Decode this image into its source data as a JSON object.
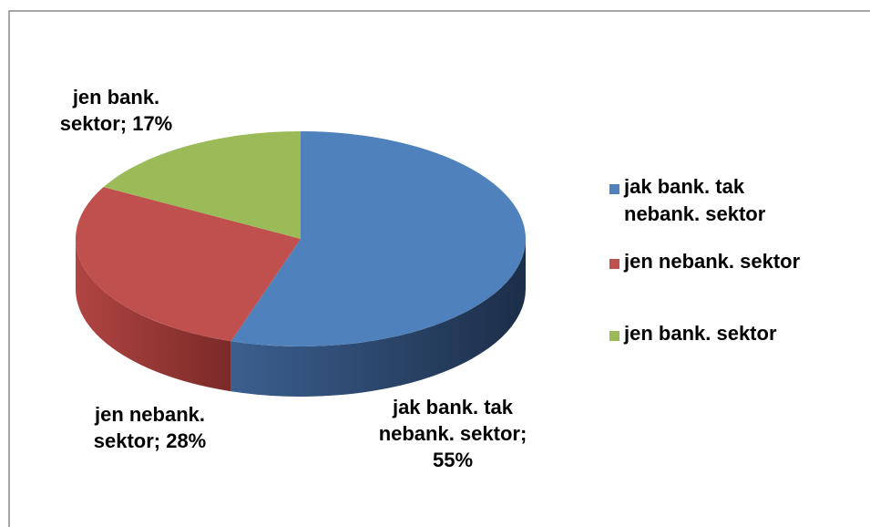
{
  "chart_data": {
    "type": "pie3d",
    "categories": [
      "jak bank. tak nebank. sektor",
      "jen nebank. sektor",
      "jen bank. sektor"
    ],
    "values": [
      55,
      28,
      17
    ],
    "value_labels": [
      "jak bank. tak nebank. sektor; 55%",
      "jen nebank. sektor; 28%",
      "jen bank. sektor; 17%"
    ],
    "colors": [
      "#4f81bd",
      "#c0504d",
      "#9bbb59"
    ],
    "legend": "right"
  }
}
